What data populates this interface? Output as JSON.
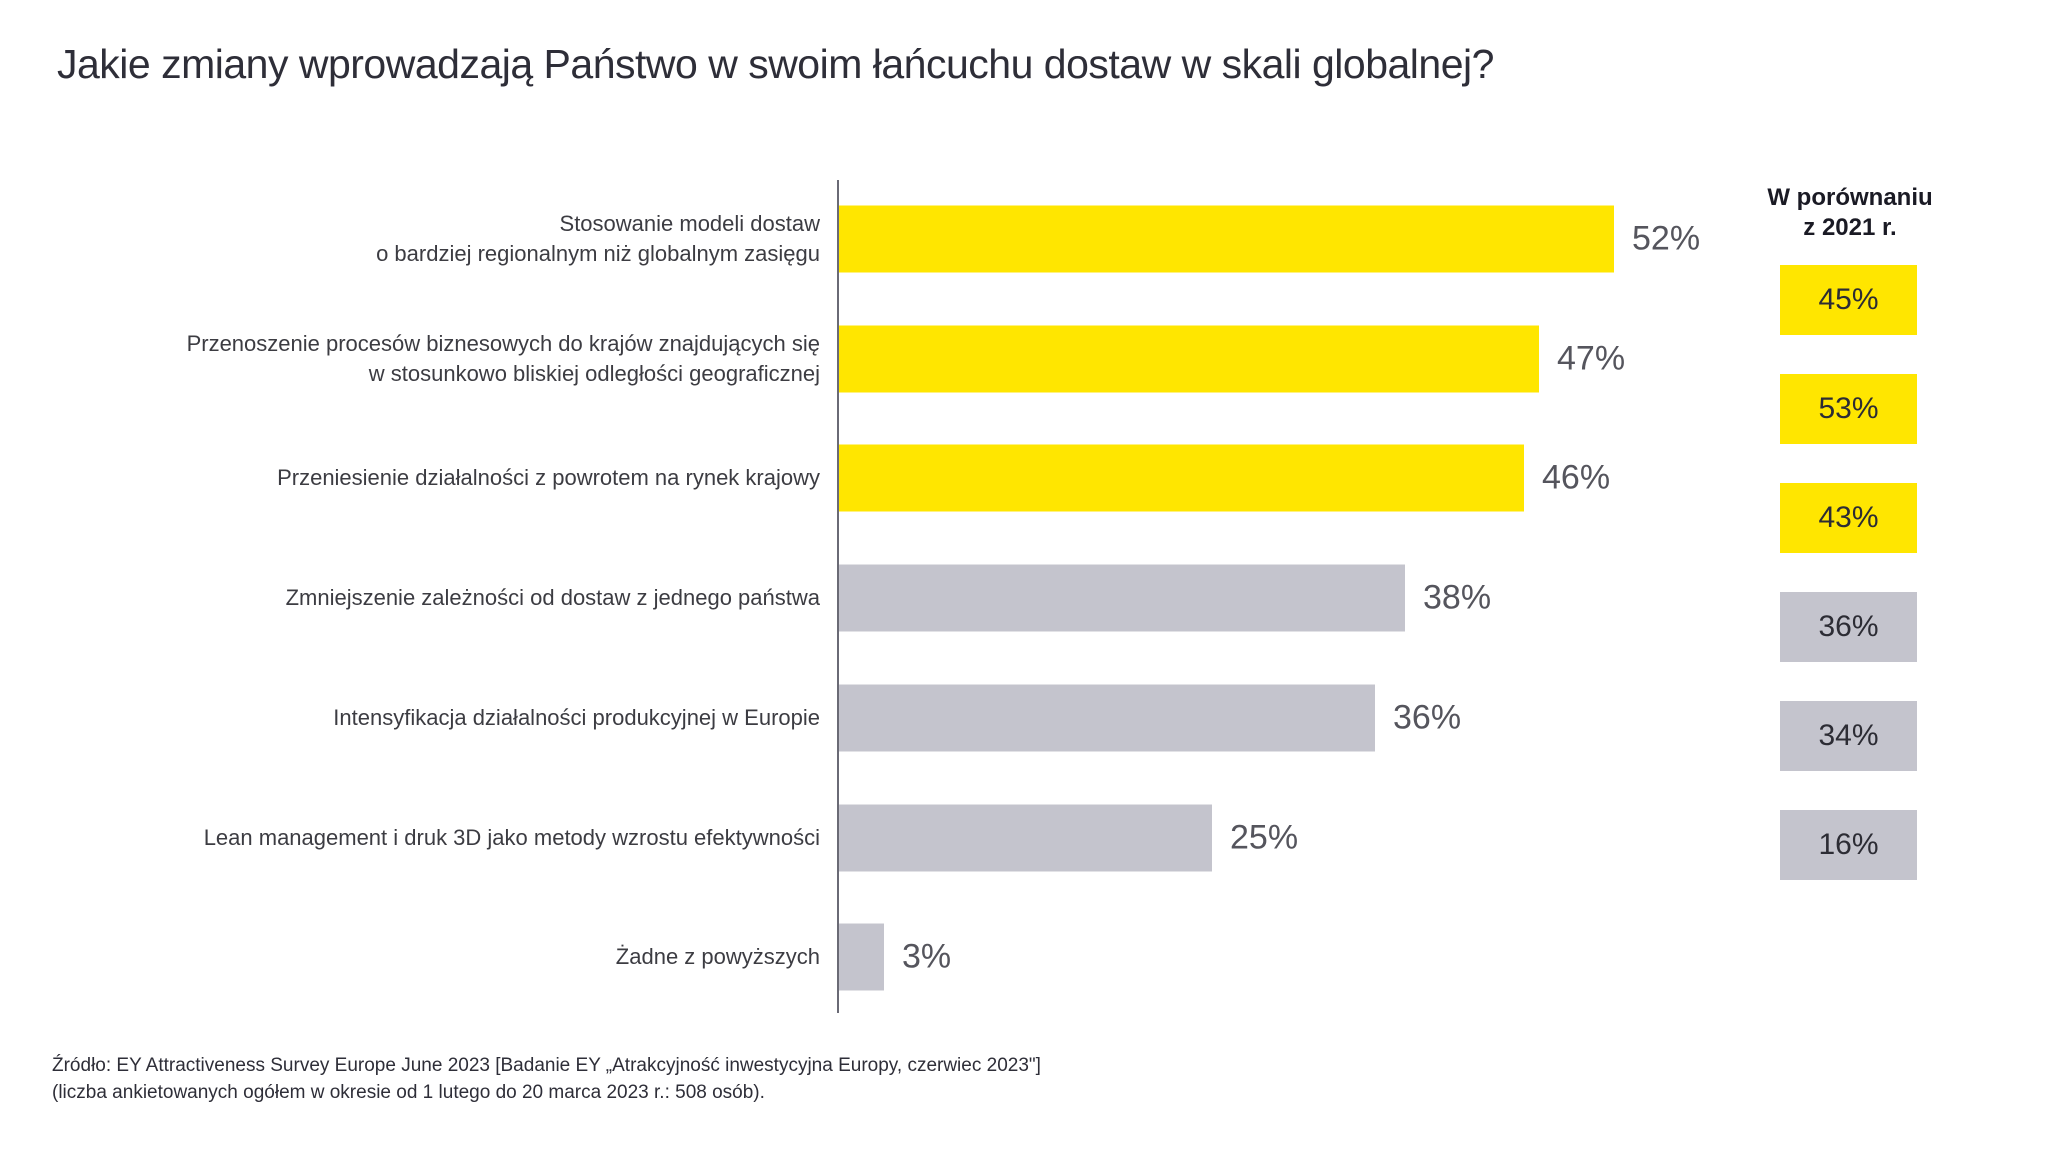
{
  "page": {
    "title": "Jakie zmiany wprowadzają Państwo w swoim łańcuchu dostaw w skali globalnej?",
    "source_line1": "Źródło: EY Attractiveness Survey Europe June 2023 [Badanie EY „Atrakcyjność inwestycyjna Europy, czerwiec 2023\"]",
    "source_line2": "(liczba ankietowanych ogółem w okresie od 1 lutego do 20 marca 2023 r.: 508 osób)."
  },
  "compare": {
    "header_line1": "W porównaniu",
    "header_line2": "z 2021 r."
  },
  "colors": {
    "highlight_yellow": "#FFE600",
    "muted_gray": "#C4C4CD",
    "axis_gray": "#6A6A75"
  },
  "chart_data": {
    "type": "bar",
    "orientation": "horizontal",
    "unit": "%",
    "value_axis_range": [
      0,
      55
    ],
    "title": "Jakie zmiany wprowadzają Państwo w swoim łańcuchu dostaw w skali globalnej?",
    "compare_header": "W porównaniu z 2021 r.",
    "categories": [
      "Stosowanie modeli dostaw o bardziej regionalnym niż globalnym zasięgu",
      "Przenoszenie procesów biznesowych do krajów znajdujących się w stosunkowo bliskiej odległości geograficznej",
      "Przeniesienie działalności z powrotem na rynek krajowy",
      "Zmniejszenie zależności od dostaw z jednego państwa",
      "Intensyfikacja działalności produkcyjnej w Europie",
      "Lean management i druk 3D jako metody wzrostu efektywności",
      "Żadne z powyższych"
    ],
    "label_lines": [
      [
        "Stosowanie modeli dostaw",
        "o bardziej regionalnym niż globalnym zasięgu"
      ],
      [
        "Przenoszenie procesów biznesowych do krajów znajdujących się",
        "w stosunkowo bliskiej odległości geograficznej"
      ],
      [
        "Przeniesienie działalności z powrotem na rynek krajowy"
      ],
      [
        "Zmniejszenie zależności od dostaw z jednego państwa"
      ],
      [
        "Intensyfikacja działalności produkcyjnej w Europie"
      ],
      [
        "Lean management i druk 3D jako metody wzrostu efektywności"
      ],
      [
        "Żadne z powyższych"
      ]
    ],
    "values": [
      52,
      47,
      46,
      38,
      36,
      25,
      3
    ],
    "value_labels": [
      "52%",
      "47%",
      "46%",
      "38%",
      "36%",
      "25%",
      "3%"
    ],
    "compare_values": [
      45,
      53,
      43,
      36,
      34,
      16,
      null
    ],
    "compare_labels": [
      "45%",
      "53%",
      "43%",
      "36%",
      "34%",
      "16%",
      null
    ],
    "bar_colors": [
      "yellow",
      "yellow",
      "yellow",
      "gray",
      "gray",
      "gray",
      "gray"
    ],
    "grid": false,
    "legend_position": "right-column"
  }
}
